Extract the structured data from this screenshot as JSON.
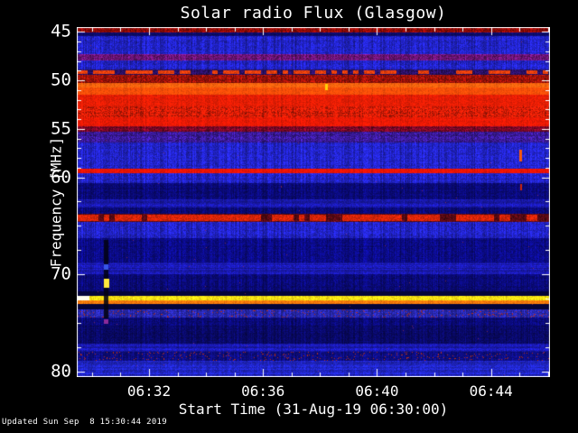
{
  "chart": {
    "title": "Solar radio Flux (Glasgow)",
    "xlabel": "Start Time (31-Aug-19 06:30:00)",
    "ylabel": "Frequency [MHz]",
    "updated": "Updated Sun Sep  8 15:30:44 2019"
  },
  "chart_data": {
    "type": "heatmap",
    "title": "Solar radio Flux (Glasgow)",
    "xlabel": "Start Time (31-Aug-19 06:30:00)",
    "ylabel": "Frequency [MHz]",
    "x_start_time": "06:30:00",
    "x_date": "31-Aug-19",
    "x_ticks_major": [
      {
        "label": "06:32",
        "t": 2
      },
      {
        "label": "06:36",
        "t": 6
      },
      {
        "label": "06:40",
        "t": 10
      },
      {
        "label": "06:44",
        "t": 14
      }
    ],
    "x_ticks_minor": [
      0,
      1,
      3,
      4,
      5,
      7,
      8,
      9,
      11,
      12,
      13,
      15,
      16
    ],
    "x_range_minutes_after_start": [
      -0.5,
      16.1
    ],
    "y_ticks_major": [
      {
        "label": "45",
        "f": 45
      },
      {
        "label": "50",
        "f": 50
      },
      {
        "label": "55",
        "f": 55
      },
      {
        "label": "60",
        "f": 60
      },
      {
        "label": "70",
        "f": 70
      },
      {
        "label": "80",
        "f": 80
      }
    ],
    "y_ticks_minor": [
      46,
      47,
      48,
      49,
      51,
      52,
      53,
      54,
      56,
      57,
      58,
      59,
      62.5,
      65,
      67.5,
      72.5,
      75,
      77.5
    ],
    "y_range": [
      44.5,
      80.6
    ],
    "legend": "none",
    "grid": false,
    "colors": {
      "background": "#000000",
      "frame": "#ffffff",
      "text": "#ffffff"
    },
    "bands": [
      {
        "f0": 44.5,
        "f1": 45.1,
        "color": "#8c0a06",
        "t": "mottled"
      },
      {
        "f0": 45.1,
        "f1": 45.43,
        "color": "#0c0c6e",
        "t": "rows"
      },
      {
        "f0": 45.43,
        "f1": 47.29,
        "color": "#2224cc",
        "t": "streaky"
      },
      {
        "f0": 47.29,
        "f1": 47.94,
        "color": "#6e1478",
        "t": "mottled"
      },
      {
        "f0": 47.94,
        "f1": 48.87,
        "color": "#2224cc",
        "t": "streaky"
      },
      {
        "f0": 48.87,
        "f1": 49.43,
        "color": "#2a1064",
        "t": "dashed",
        "dash": "#e63e0c",
        "duty": 0.55
      },
      {
        "f0": 49.43,
        "f1": 50.27,
        "color": "#a01208",
        "t": "mottled"
      },
      {
        "f0": 50.27,
        "f1": 50.75,
        "color": "#ff660e",
        "t": "light"
      },
      {
        "f0": 50.75,
        "f1": 51.48,
        "color": "#fb4e08",
        "t": "light"
      },
      {
        "f0": 51.48,
        "f1": 52.68,
        "color": "#ea1e04",
        "t": "light"
      },
      {
        "f0": 52.68,
        "f1": 53.8,
        "color": "#d81c06",
        "t": "mottled"
      },
      {
        "f0": 53.8,
        "f1": 54.73,
        "color": "#ee1a04",
        "t": "light"
      },
      {
        "f0": 54.73,
        "f1": 55.29,
        "color": "#7c0828",
        "t": "mottled"
      },
      {
        "f0": 55.29,
        "f1": 56.4,
        "color": "#3a1a9a",
        "t": "mottled"
      },
      {
        "f0": 56.4,
        "f1": 59.1,
        "color": "#2224cc",
        "t": "streaky"
      },
      {
        "f0": 59.1,
        "f1": 59.57,
        "color": "#f01404",
        "t": "light"
      },
      {
        "f0": 59.57,
        "f1": 60.59,
        "color": "#2224cc",
        "t": "streaky"
      },
      {
        "f0": 60.59,
        "f1": 62.26,
        "color": "#0a0a78",
        "t": "streaky"
      },
      {
        "f0": 62.26,
        "f1": 63.1,
        "color": "#1a1ab4",
        "t": "rows"
      },
      {
        "f0": 63.1,
        "f1": 63.75,
        "color": "#0a0a78",
        "t": "streaky"
      },
      {
        "f0": 63.75,
        "f1": 64.59,
        "color": "#5c0a14",
        "t": "dashed",
        "dash": "#d42408",
        "duty": 0.78
      },
      {
        "f0": 64.59,
        "f1": 66.26,
        "color": "#2224cc",
        "t": "streaky"
      },
      {
        "f0": 66.26,
        "f1": 68.77,
        "color": "#0b0b86",
        "t": "streaky"
      },
      {
        "f0": 68.77,
        "f1": 69.98,
        "color": "#1a1ab4",
        "t": "rows"
      },
      {
        "f0": 69.98,
        "f1": 71.75,
        "color": "#0a0a78",
        "t": "streaky"
      },
      {
        "f0": 71.75,
        "f1": 72.21,
        "color": "#04043a",
        "t": "solid"
      },
      {
        "f0": 72.21,
        "f1": 72.68,
        "color": "#ffe414",
        "t": "light"
      },
      {
        "f0": 72.68,
        "f1": 73.05,
        "color": "#fb7a0a",
        "t": "light"
      },
      {
        "f0": 73.05,
        "f1": 73.61,
        "color": "#04043a",
        "t": "solid"
      },
      {
        "f0": 73.61,
        "f1": 74.45,
        "color": "#2a2ab6",
        "t": "speckle"
      },
      {
        "f0": 74.45,
        "f1": 75.28,
        "color": "#0a0a78",
        "t": "streaky"
      },
      {
        "f0": 75.28,
        "f1": 77.14,
        "color": "#090968",
        "t": "streaky"
      },
      {
        "f0": 77.14,
        "f1": 77.98,
        "color": "#1a1ab4",
        "t": "rows"
      },
      {
        "f0": 77.98,
        "f1": 78.91,
        "color": "#0d0d80",
        "t": "speckle"
      },
      {
        "f0": 78.91,
        "f1": 80.6,
        "color": "#2026c8",
        "t": "rows"
      }
    ],
    "features": [
      {
        "name": "dark-dropout-streak",
        "t": 0.51,
        "w": 5,
        "f0": 66.5,
        "f1": 74.55,
        "color": "#020212",
        "alpha": 0.85
      },
      {
        "name": "blue-blob",
        "t": 0.51,
        "w": 5,
        "f0": 69.0,
        "f1": 69.5,
        "color": "#3856e8",
        "alpha": 1
      },
      {
        "name": "yellow-point-burst",
        "t": 0.51,
        "w": 6,
        "f0": 70.5,
        "f1": 71.35,
        "color": "#ffe83c",
        "alpha": 1
      },
      {
        "name": "purple-dot",
        "t": 0.51,
        "w": 5,
        "f0": 74.6,
        "f1": 75.1,
        "color": "#8a2a9a",
        "alpha": 1
      },
      {
        "name": "white-line-start",
        "t": -0.3,
        "w": 13,
        "f0": 72.21,
        "f1": 72.68,
        "color": "#ffffec",
        "alpha": 1
      },
      {
        "name": "yellow-burst-dash",
        "t": 8.24,
        "w": 3,
        "f0": 50.35,
        "f1": 51.05,
        "color": "#ffd008",
        "alpha": 1
      },
      {
        "name": "orange-burst-dash",
        "t": 15.05,
        "w": 3,
        "f0": 57.2,
        "f1": 58.35,
        "color": "#fb5a06",
        "alpha": 1
      },
      {
        "name": "red-dot",
        "t": 15.05,
        "w": 2,
        "f0": 60.7,
        "f1": 61.35,
        "color": "#d02408",
        "alpha": 1
      }
    ]
  }
}
